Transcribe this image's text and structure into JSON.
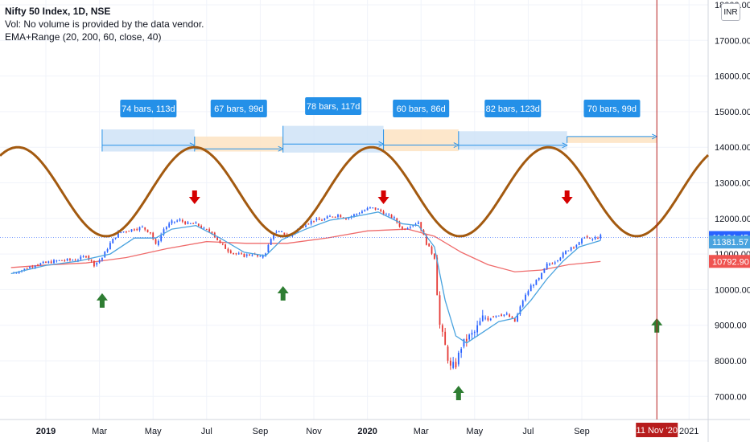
{
  "legend": {
    "title": "Nifty 50 Index, 1D, NSE",
    "volume_note": "Vol: No volume is provided by the data vendor.",
    "indicator": "EMA+Range (20, 200, 60, close, 40)"
  },
  "currency_button": "INR",
  "colors": {
    "up": "#26a69a",
    "down": "#ef5350",
    "candle_up": "#2962ff",
    "candle_down": "#e53935",
    "ema_fast": "#4aa3df",
    "ema_slow": "#ef6b6b",
    "sine": "#a35a10",
    "box_blue": "#cfe3f7",
    "box_orange": "#fde3c2",
    "label_blue": "#2490e8",
    "arrow_red": "#d50000",
    "arrow_green": "#2e7d32",
    "vline": "#b71c1c"
  },
  "chart_data": {
    "type": "line",
    "title": "Nifty 50 Index, 1D, NSE",
    "ylim": [
      6500,
      18500
    ],
    "y_ticks": [
      "7000.00",
      "8000.00",
      "9000.00",
      "10000.00",
      "11000.00",
      "12000.00",
      "13000.00",
      "14000.00",
      "15000.00",
      "16000.00",
      "17000.00",
      "18000.00"
    ],
    "x_ticks": [
      {
        "label": "2019",
        "bold": true
      },
      {
        "label": "Mar",
        "bold": false
      },
      {
        "label": "May",
        "bold": false
      },
      {
        "label": "Jul",
        "bold": false
      },
      {
        "label": "Sep",
        "bold": false
      },
      {
        "label": "Nov",
        "bold": false
      },
      {
        "label": "2020",
        "bold": true
      },
      {
        "label": "Mar",
        "bold": false
      },
      {
        "label": "May",
        "bold": false
      },
      {
        "label": "Jul",
        "bold": false
      },
      {
        "label": "Sep",
        "bold": false
      },
      {
        "label": "2021",
        "bold": false
      }
    ],
    "x_tick_months": [
      0,
      2,
      4,
      6,
      8,
      10,
      12,
      14,
      16,
      18,
      20,
      24
    ],
    "price_series": [
      [
        -1.3,
        10450
      ],
      [
        -1.0,
        10520
      ],
      [
        -0.7,
        10600
      ],
      [
        -0.4,
        10700
      ],
      [
        0.0,
        10750
      ],
      [
        0.3,
        10800
      ],
      [
        0.6,
        10820
      ],
      [
        0.9,
        10830
      ],
      [
        1.2,
        10850
      ],
      [
        1.5,
        10950
      ],
      [
        1.8,
        10700
      ],
      [
        2.1,
        10900
      ],
      [
        2.4,
        11300
      ],
      [
        2.7,
        11600
      ],
      [
        3.0,
        11650
      ],
      [
        3.3,
        11700
      ],
      [
        3.6,
        11750
      ],
      [
        3.9,
        11600
      ],
      [
        4.1,
        11250
      ],
      [
        4.4,
        11700
      ],
      [
        4.7,
        11900
      ],
      [
        5.0,
        11950
      ],
      [
        5.3,
        11850
      ],
      [
        5.6,
        11850
      ],
      [
        5.9,
        11700
      ],
      [
        6.2,
        11600
      ],
      [
        6.5,
        11300
      ],
      [
        6.8,
        11100
      ],
      [
        7.1,
        11000
      ],
      [
        7.4,
        10950
      ],
      [
        7.7,
        11000
      ],
      [
        8.0,
        10900
      ],
      [
        8.2,
        11050
      ],
      [
        8.5,
        11600
      ],
      [
        8.8,
        11600
      ],
      [
        9.1,
        11500
      ],
      [
        9.4,
        11700
      ],
      [
        9.7,
        11850
      ],
      [
        10.0,
        11950
      ],
      [
        10.3,
        11950
      ],
      [
        10.6,
        12050
      ],
      [
        10.9,
        12100
      ],
      [
        11.2,
        12000
      ],
      [
        11.5,
        12100
      ],
      [
        11.8,
        12200
      ],
      [
        12.1,
        12300
      ],
      [
        12.4,
        12250
      ],
      [
        12.7,
        12100
      ],
      [
        13.0,
        12000
      ],
      [
        13.3,
        11700
      ],
      [
        13.6,
        11800
      ],
      [
        13.9,
        11900
      ],
      [
        14.2,
        11300
      ],
      [
        14.5,
        10900
      ],
      [
        14.7,
        9000
      ],
      [
        14.9,
        8400
      ],
      [
        15.1,
        7800
      ],
      [
        15.3,
        7900
      ],
      [
        15.5,
        8400
      ],
      [
        15.7,
        8600
      ],
      [
        16.0,
        8800
      ],
      [
        16.3,
        9200
      ],
      [
        16.6,
        9250
      ],
      [
        16.9,
        9300
      ],
      [
        17.2,
        9300
      ],
      [
        17.5,
        9100
      ],
      [
        17.8,
        9700
      ],
      [
        18.1,
        10100
      ],
      [
        18.4,
        10300
      ],
      [
        18.7,
        10700
      ],
      [
        19.0,
        10800
      ],
      [
        19.3,
        11000
      ],
      [
        19.6,
        11200
      ],
      [
        19.9,
        11300
      ],
      [
        20.1,
        11500
      ],
      [
        20.3,
        11400
      ],
      [
        20.5,
        11450
      ],
      [
        20.7,
        11500
      ]
    ],
    "ema_fast": [
      [
        -1.3,
        10450
      ],
      [
        0.0,
        10680
      ],
      [
        1.2,
        10800
      ],
      [
        2.4,
        11000
      ],
      [
        3.3,
        11450
      ],
      [
        4.1,
        11450
      ],
      [
        4.7,
        11700
      ],
      [
        5.6,
        11800
      ],
      [
        6.5,
        11450
      ],
      [
        7.4,
        11050
      ],
      [
        8.2,
        10950
      ],
      [
        8.8,
        11400
      ],
      [
        9.7,
        11700
      ],
      [
        10.6,
        11950
      ],
      [
        11.5,
        12050
      ],
      [
        12.4,
        12180
      ],
      [
        13.3,
        11850
      ],
      [
        13.9,
        11800
      ],
      [
        14.5,
        11200
      ],
      [
        14.9,
        9700
      ],
      [
        15.3,
        8700
      ],
      [
        15.7,
        8500
      ],
      [
        16.3,
        8800
      ],
      [
        16.9,
        9100
      ],
      [
        17.5,
        9200
      ],
      [
        18.1,
        9700
      ],
      [
        18.7,
        10300
      ],
      [
        19.3,
        10800
      ],
      [
        19.9,
        11200
      ],
      [
        20.7,
        11380
      ]
    ],
    "ema_slow": [
      [
        -1.3,
        10620
      ],
      [
        0.0,
        10690
      ],
      [
        1.5,
        10750
      ],
      [
        3.0,
        10900
      ],
      [
        4.5,
        11150
      ],
      [
        6.0,
        11350
      ],
      [
        7.5,
        11300
      ],
      [
        9.0,
        11300
      ],
      [
        10.5,
        11450
      ],
      [
        12.0,
        11650
      ],
      [
        13.5,
        11700
      ],
      [
        14.5,
        11500
      ],
      [
        15.5,
        11050
      ],
      [
        16.5,
        10700
      ],
      [
        17.5,
        10500
      ],
      [
        18.5,
        10550
      ],
      [
        19.5,
        10700
      ],
      [
        20.7,
        10790
      ]
    ],
    "sine": {
      "period_months": 6.6,
      "peak_month": 5.55,
      "high": 14000,
      "low": 11500
    },
    "cycles": [
      {
        "label": "74 bars, 113d",
        "start": 2.1,
        "end": 5.55,
        "fill": "blue",
        "box_top": 14500,
        "box_bottom": 13880
      },
      {
        "label": "67 bars, 99d",
        "start": 5.55,
        "end": 8.85,
        "fill": "orange",
        "box_top": 14300,
        "box_bottom": 13880
      },
      {
        "label": "78 bars, 117d",
        "start": 8.85,
        "end": 12.6,
        "fill": "blue",
        "box_top": 14600,
        "box_bottom": 13850
      },
      {
        "label": "60 bars, 86d",
        "start": 12.6,
        "end": 15.4,
        "fill": "orange",
        "box_top": 14500,
        "box_bottom": 13890
      },
      {
        "label": "82 bars, 123d",
        "start": 15.4,
        "end": 19.45,
        "fill": "blue",
        "box_top": 14450,
        "box_bottom": 13930
      },
      {
        "label": "70 bars, 99d",
        "start": 19.45,
        "end": 22.8,
        "fill": "orange",
        "box_top": 14300,
        "box_bottom": 14120
      }
    ],
    "sell_arrows": [
      5.55,
      12.6,
      19.45
    ],
    "buy_arrows": [
      {
        "m": 2.1,
        "y": 9900
      },
      {
        "m": 8.85,
        "y": 10100
      },
      {
        "m": 15.4,
        "y": 7300
      },
      {
        "m": 22.8,
        "y": 9200
      }
    ],
    "vline_month": 22.8,
    "current_date_label": "11 Nov '20",
    "price_labels": [
      {
        "value": 11464.45,
        "text": "11464.45",
        "color": "#2962ff"
      },
      {
        "value": 11381.57,
        "text": "11381.57",
        "color": "#4aa3df"
      },
      {
        "value": 10792.9,
        "text": "10792.90",
        "color": "#ef5350"
      }
    ]
  }
}
